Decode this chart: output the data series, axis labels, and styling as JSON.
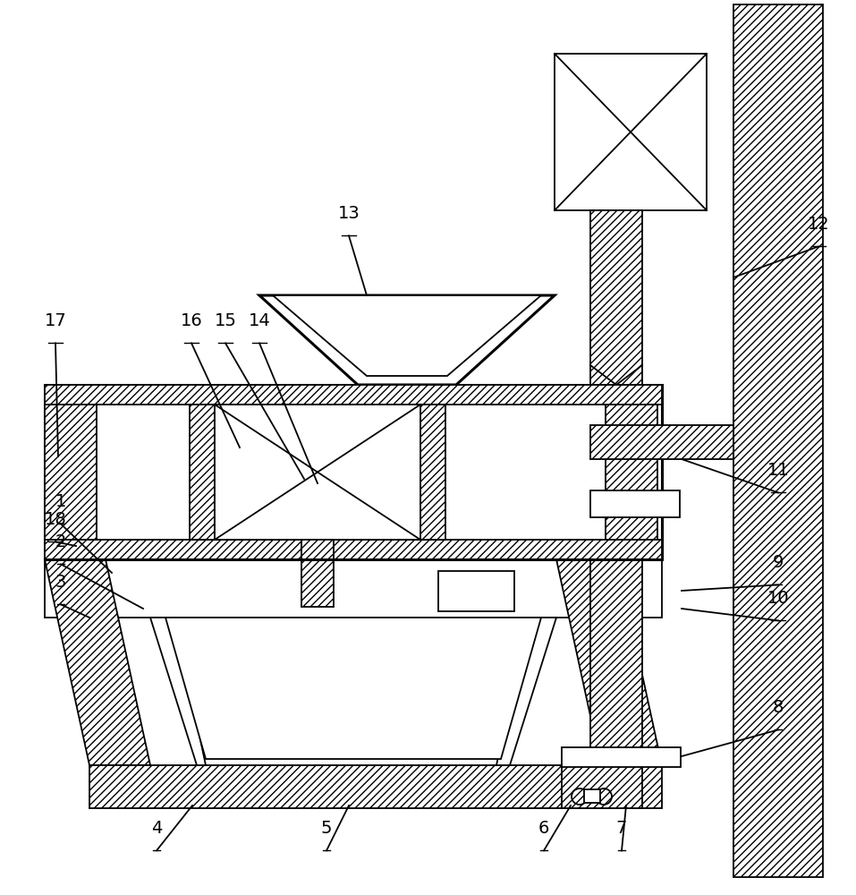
{
  "bg_color": "#ffffff",
  "lc": "#000000",
  "lw": 1.3,
  "tlw": 2.2,
  "hatch": "////",
  "fig_w": 9.57,
  "fig_h": 10.0,
  "dpi": 100
}
